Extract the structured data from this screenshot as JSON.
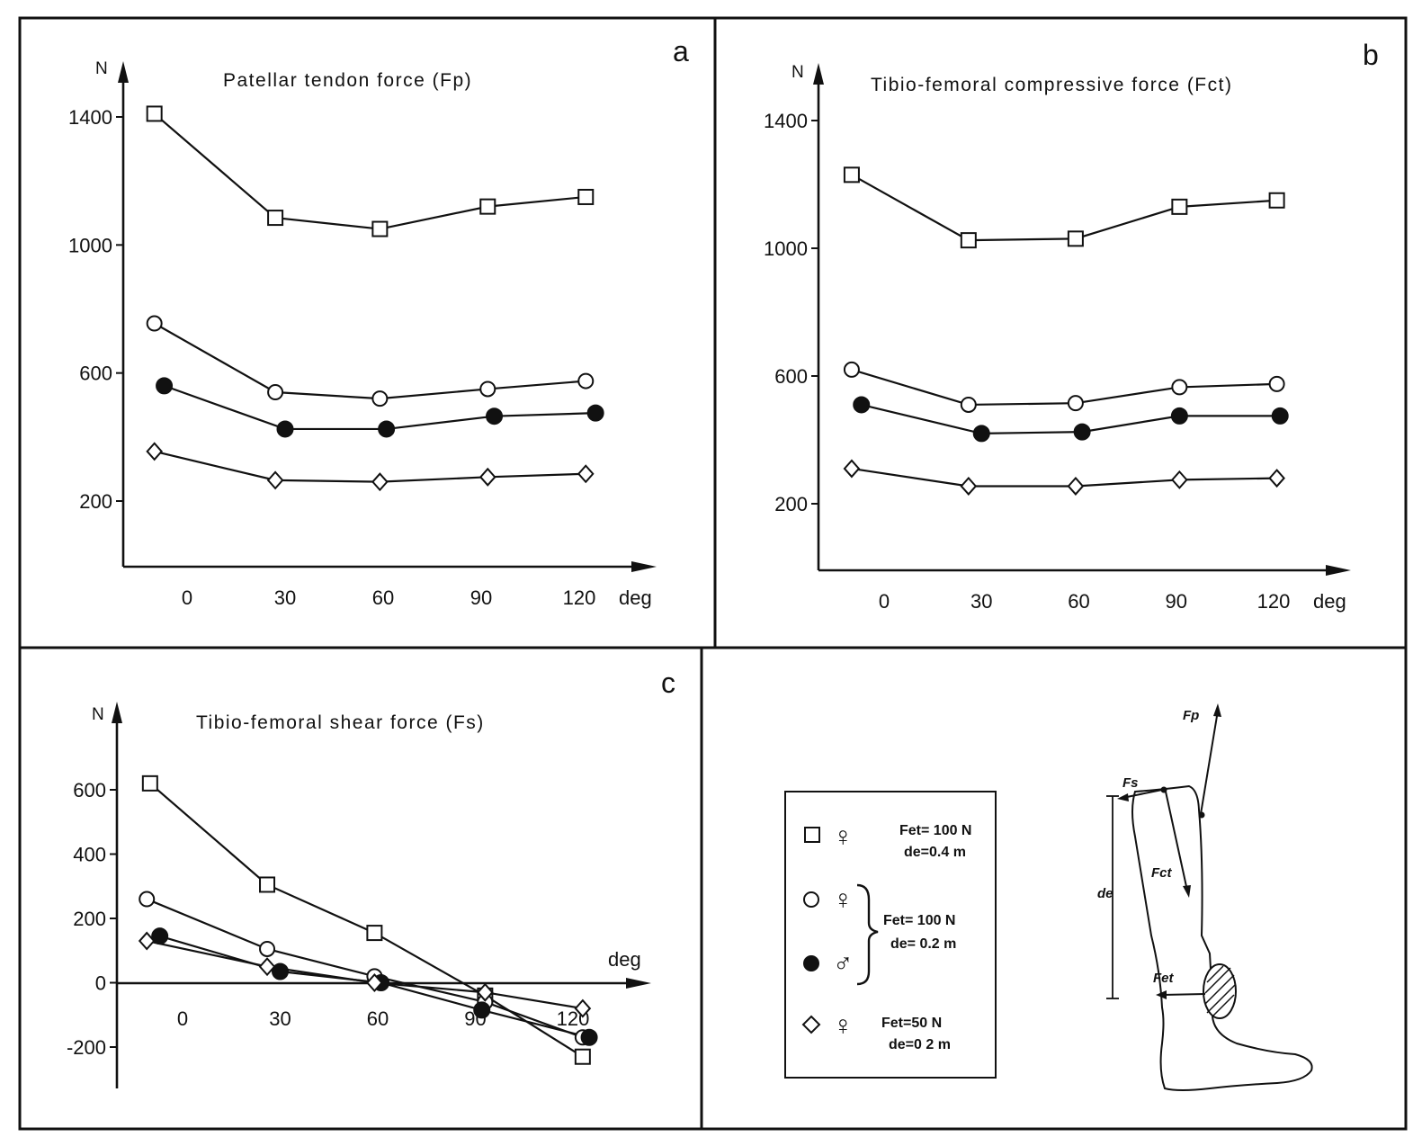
{
  "chart_data": [
    {
      "type": "line",
      "panel_letter": "a",
      "title": "Patellar tendon force (Fp)",
      "ylabel": "N",
      "xlabel": "deg",
      "xlim": [
        -15,
        140
      ],
      "ylim": [
        0,
        1500
      ],
      "xticks": [
        0,
        30,
        60,
        90,
        120
      ],
      "yticks": [
        200,
        600,
        1000,
        1400
      ],
      "series": [
        {
          "marker": "open-square",
          "x": [
            -10,
            27,
            59,
            92,
            122
          ],
          "values": [
            1410,
            1085,
            1050,
            1120,
            1150
          ]
        },
        {
          "marker": "open-circle",
          "x": [
            -10,
            27,
            59,
            92,
            122
          ],
          "values": [
            755,
            540,
            520,
            550,
            575
          ]
        },
        {
          "marker": "filled-circle",
          "x": [
            -7,
            30,
            61,
            94,
            125
          ],
          "values": [
            560,
            425,
            425,
            465,
            475
          ]
        },
        {
          "marker": "open-diamond",
          "x": [
            -10,
            27,
            59,
            92,
            122
          ],
          "values": [
            355,
            265,
            260,
            275,
            285
          ]
        }
      ]
    },
    {
      "type": "line",
      "panel_letter": "b",
      "title": "Tibio-femoral compressive force (Fct)",
      "ylabel": "N",
      "xlabel": "deg",
      "xlim": [
        -15,
        140
      ],
      "ylim": [
        0,
        1500
      ],
      "xticks": [
        0,
        30,
        60,
        90,
        120
      ],
      "yticks": [
        200,
        600,
        1000,
        1400
      ],
      "series": [
        {
          "marker": "open-square",
          "x": [
            -10,
            26,
            59,
            91,
            121
          ],
          "values": [
            1230,
            1025,
            1030,
            1130,
            1150
          ]
        },
        {
          "marker": "open-circle",
          "x": [
            -10,
            26,
            59,
            91,
            121
          ],
          "values": [
            620,
            510,
            515,
            565,
            575
          ]
        },
        {
          "marker": "filled-circle",
          "x": [
            -7,
            30,
            61,
            91,
            122
          ],
          "values": [
            510,
            420,
            425,
            475,
            475
          ]
        },
        {
          "marker": "open-diamond",
          "x": [
            -10,
            26,
            59,
            91,
            121
          ],
          "values": [
            310,
            255,
            255,
            275,
            280
          ]
        }
      ]
    },
    {
      "type": "line",
      "panel_letter": "c",
      "title": "Tibio-femoral shear force (Fs)",
      "ylabel": "N",
      "xlabel": "deg",
      "xlim": [
        -20,
        145
      ],
      "ylim": [
        -290,
        720
      ],
      "xticks": [
        0,
        30,
        60,
        90,
        120
      ],
      "yticks": [
        -200,
        0,
        200,
        400,
        600
      ],
      "series": [
        {
          "marker": "open-square",
          "x": [
            -10,
            26,
            59,
            93,
            123
          ],
          "values": [
            620,
            305,
            155,
            -40,
            -230
          ]
        },
        {
          "marker": "open-circle",
          "x": [
            -11,
            26,
            59,
            93,
            123
          ],
          "values": [
            260,
            105,
            20,
            -60,
            -170
          ]
        },
        {
          "marker": "filled-circle",
          "x": [
            -7,
            30,
            61,
            92,
            125
          ],
          "values": [
            145,
            35,
            0,
            -85,
            -170
          ]
        },
        {
          "marker": "open-diamond",
          "x": [
            -11,
            26,
            59,
            93,
            123
          ],
          "values": [
            130,
            50,
            0,
            -30,
            -80
          ]
        }
      ]
    }
  ],
  "legend": {
    "entries": [
      {
        "marker": "open-square",
        "sex_symbol": "♀",
        "lines": [
          "Fet= 100 N",
          "de=0.4 m"
        ]
      },
      {
        "marker": "open-circle",
        "sex_symbol": "♀",
        "lines": []
      },
      {
        "marker": "filled-circle",
        "sex_symbol": "♂",
        "lines": []
      },
      {
        "marker": "open-diamond",
        "sex_symbol": "♀",
        "lines": [
          "Fet=50 N",
          "de=0 2 m"
        ]
      }
    ],
    "bracket_lines": [
      "Fet= 100 N",
      "de= 0.2 m"
    ]
  },
  "diagram": {
    "labels": {
      "fp": "Fp",
      "fs": "Fs",
      "fct": "Fct",
      "fet": "Fet",
      "de": "de"
    }
  }
}
